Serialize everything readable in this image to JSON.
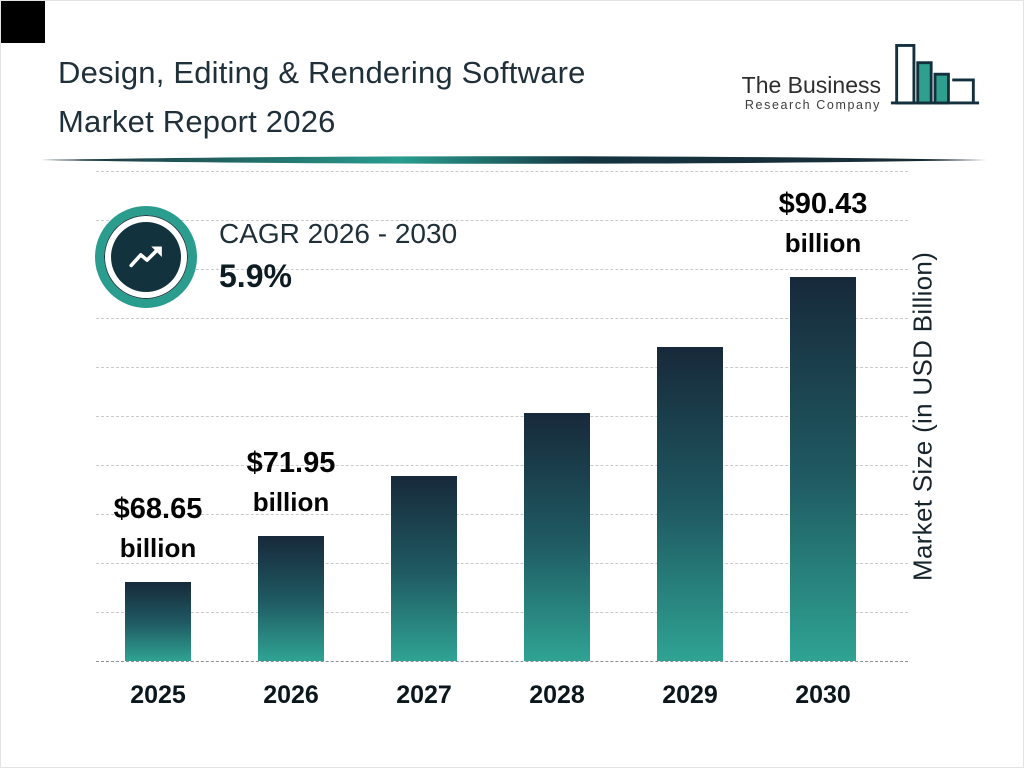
{
  "page": {
    "title_line1": "Design, Editing & Rendering Software",
    "title_line2": "Market Report 2026"
  },
  "logo": {
    "line1": "The Business",
    "line2": "Research Company"
  },
  "cagr": {
    "label": "CAGR 2026 - 2030",
    "value": "5.9%"
  },
  "chart_data": {
    "type": "bar",
    "categories": [
      "2025",
      "2026",
      "2027",
      "2028",
      "2029",
      "2030"
    ],
    "values": [
      68.65,
      71.95,
      76.19,
      80.69,
      85.45,
      90.43
    ],
    "bar_labels": [
      {
        "amount": "$68.65",
        "unit": "billion"
      },
      {
        "amount": "$71.95",
        "unit": "billion"
      },
      null,
      null,
      null,
      {
        "amount": "$90.43",
        "unit": "billion"
      }
    ],
    "xlabel": "",
    "ylabel": "Market Size (in USD Billion)",
    "ylim": [
      63,
      98
    ],
    "grid": true,
    "legend": false,
    "colors": {
      "bar_top": "#17293a",
      "bar_bottom": "#2fa393",
      "accent_teal": "#2a9d8f",
      "dark_navy": "#12333e",
      "gridline": "#c6cbce",
      "title_text": "#20303a"
    }
  }
}
